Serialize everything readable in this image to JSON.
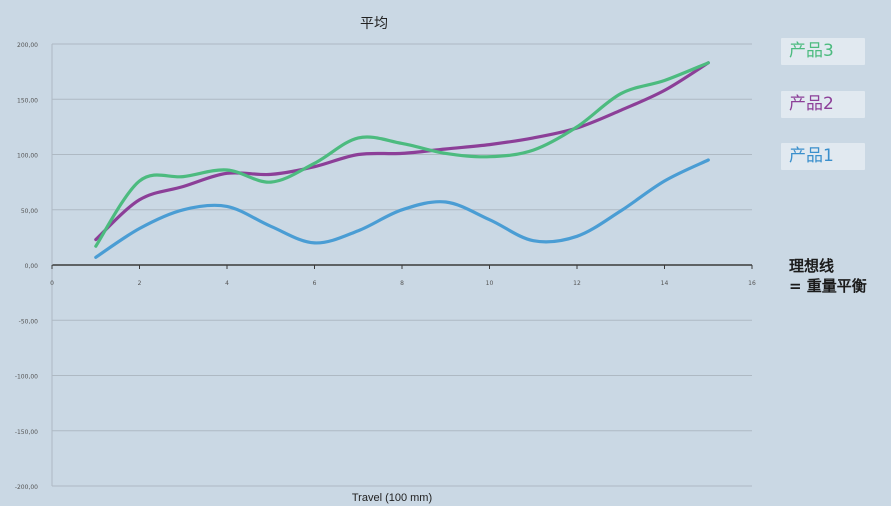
{
  "chart_data": {
    "type": "line",
    "title": "平均",
    "xlabel": "Travel (100 mm)",
    "ylabel": "",
    "xlim": [
      0,
      16
    ],
    "ylim": [
      -200,
      200
    ],
    "x_ticks": [
      0,
      2,
      4,
      6,
      8,
      10,
      12,
      14,
      16
    ],
    "y_ticks": [
      200,
      150,
      100,
      50,
      0,
      -50,
      -100,
      -150,
      -200
    ],
    "x_tick_labels": [
      "0",
      "2",
      "4",
      "6",
      "8",
      "10",
      "12",
      "14",
      "16"
    ],
    "y_tick_labels": [
      "200,00",
      "150,00",
      "100,00",
      "50,00",
      "0,00",
      "-50,00",
      "-100,00",
      "-150,00",
      "-200,00"
    ],
    "grid": "horizontal",
    "legend_position": "right",
    "series": [
      {
        "name": "产品3",
        "color": "#4cbb7f",
        "x": [
          1,
          2,
          3,
          4,
          5,
          6,
          7,
          8,
          9,
          10,
          11,
          12,
          13,
          14,
          15
        ],
        "y": [
          17,
          76,
          80,
          86,
          75,
          92,
          115,
          110,
          101,
          98,
          104,
          125,
          155,
          167,
          183
        ]
      },
      {
        "name": "产品2",
        "color": "#8c3f98",
        "x": [
          1,
          2,
          3,
          4,
          5,
          6,
          7,
          8,
          9,
          10,
          11,
          12,
          13,
          14,
          15
        ],
        "y": [
          23,
          59,
          71,
          83,
          82,
          89,
          100,
          101,
          105,
          109,
          115,
          124,
          140,
          158,
          183
        ]
      },
      {
        "name": "产品1",
        "color": "#4a9dd4",
        "x": [
          1,
          2,
          3,
          4,
          5,
          6,
          7,
          8,
          9,
          10,
          11,
          12,
          13,
          14,
          15
        ],
        "y": [
          7,
          33,
          50,
          53,
          35,
          20,
          31,
          50,
          57,
          41,
          22,
          26,
          49,
          76,
          95
        ]
      }
    ]
  },
  "annotation": {
    "line1": "理想线",
    "line2": "= 重量平衡"
  }
}
